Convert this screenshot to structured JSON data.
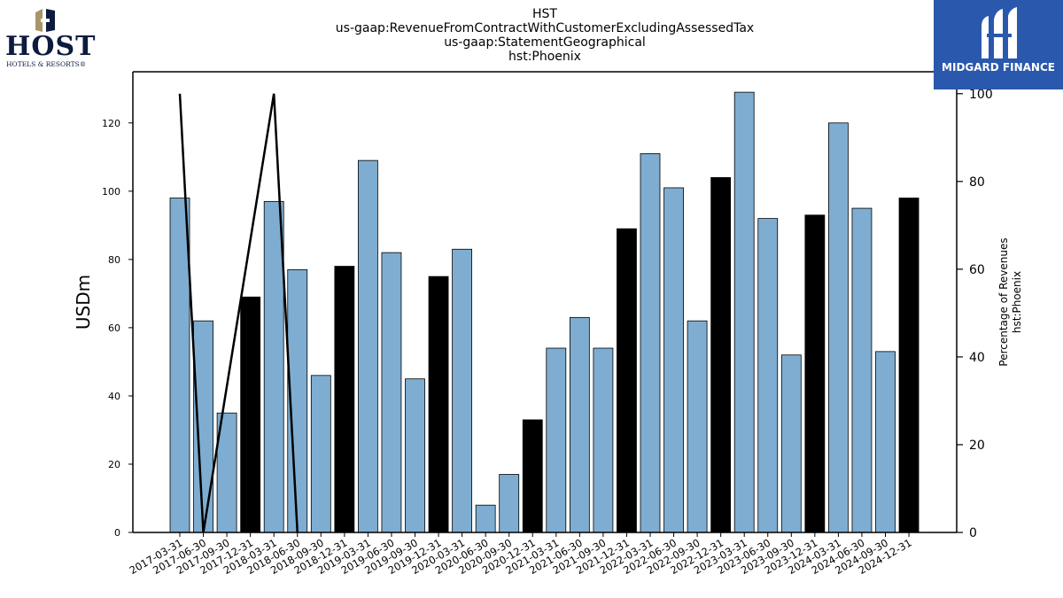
{
  "title": {
    "lines": [
      "HST",
      "us-gaap:RevenueFromContractWithCustomerExcludingAssessedTax",
      "us-gaap:StatementGeographical",
      "hst:Phoenix"
    ]
  },
  "logos": {
    "host_word": "HOST",
    "host_sub": "HOTELS & RESORTS®",
    "midgard": "MIDGARD FINANCE"
  },
  "colors": {
    "bar_blue": "#7eadd1",
    "bar_black": "#000000",
    "line": "#000000",
    "midgard_bg": "#2a58ad",
    "host_navy": "#0d1b3e",
    "host_gold": "#a8956a"
  },
  "chart_data": {
    "type": "bar",
    "categories": [
      "2017-03-31",
      "2017-06-30",
      "2017-09-30",
      "2017-12-31",
      "2018-03-31",
      "2018-06-30",
      "2018-09-30",
      "2018-12-31",
      "2019-03-31",
      "2019-06-30",
      "2019-09-30",
      "2019-12-31",
      "2020-03-31",
      "2020-06-30",
      "2020-09-30",
      "2020-12-31",
      "2021-03-31",
      "2021-06-30",
      "2021-09-30",
      "2021-12-31",
      "2022-03-31",
      "2022-06-30",
      "2022-09-30",
      "2022-12-31",
      "2023-03-31",
      "2023-06-30",
      "2023-09-30",
      "2023-12-31",
      "2024-03-31",
      "2024-06-30",
      "2024-09-30",
      "2024-12-31"
    ],
    "values": [
      98,
      62,
      35,
      69,
      97,
      77,
      46,
      78,
      109,
      82,
      45,
      75,
      83,
      8,
      17,
      33,
      54,
      63,
      54,
      89,
      111,
      101,
      62,
      104,
      129,
      92,
      52,
      93,
      120,
      95,
      53,
      98
    ],
    "highlight": [
      false,
      false,
      false,
      true,
      false,
      false,
      false,
      true,
      false,
      false,
      false,
      true,
      false,
      false,
      false,
      true,
      false,
      false,
      false,
      true,
      false,
      false,
      false,
      true,
      false,
      false,
      false,
      true,
      false,
      false,
      false,
      true
    ],
    "ylabel": "USDm",
    "ylim": [
      0,
      135
    ],
    "yticks": [
      0,
      20,
      40,
      60,
      80,
      100,
      120
    ],
    "y2label_lines": [
      "Percentage of Revenues",
      "hst:Phoenix"
    ],
    "y2lim": [
      0,
      105
    ],
    "y2ticks": [
      0,
      20,
      40,
      60,
      80,
      100
    ],
    "line_series": {
      "x_index": [
        0,
        1,
        4,
        5
      ],
      "values": [
        100,
        0,
        100,
        0
      ]
    },
    "grid": false,
    "legend": "none"
  }
}
